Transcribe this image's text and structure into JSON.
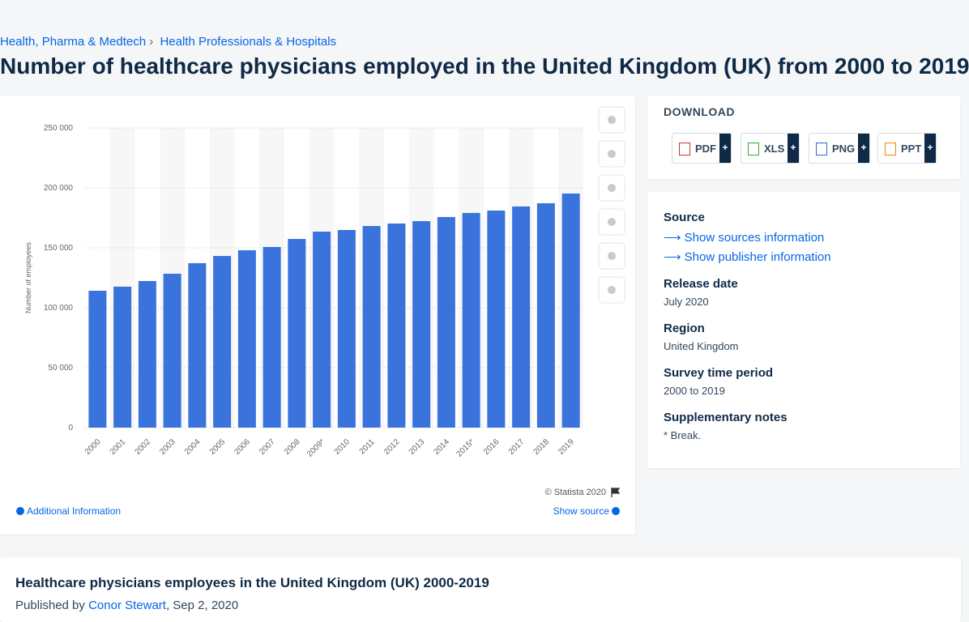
{
  "breadcrumbs": [
    "Health, Pharma & Medtech",
    "Health Professionals & Hospitals"
  ],
  "page_title": "Number of healthcare physicians employed in the United Kingdom (UK) from 2000 to 2019",
  "chart_data": {
    "type": "bar",
    "y_label": "Number of employees",
    "categories": [
      "2000",
      "2001",
      "2002",
      "2003",
      "2004",
      "2005",
      "2006",
      "2007",
      "2008",
      "2009*",
      "2010",
      "2011",
      "2012",
      "2013",
      "2014",
      "2015*",
      "2016",
      "2017",
      "2018",
      "2019"
    ],
    "values": [
      114200,
      117600,
      122300,
      128400,
      137200,
      143200,
      148000,
      150700,
      157400,
      163500,
      164900,
      168200,
      170300,
      172300,
      175700,
      179100,
      181100,
      184500,
      187200,
      195300
    ],
    "color": "#3a73dc",
    "ylim": [
      0,
      250000
    ],
    "yticks": [
      0,
      {
        "value": 50000,
        "label": "50 000"
      },
      {
        "value": 100000,
        "label": "100 000"
      },
      {
        "value": 150000,
        "label": "150 000"
      },
      {
        "value": 200000,
        "label": "200 000"
      },
      {
        "value": 250000,
        "label": "250 000"
      }
    ],
    "grid": true,
    "copyright": "© Statista 2020"
  },
  "chart_links": {
    "additional": "Additional Information",
    "show_source": "Show source"
  },
  "download": {
    "heading": "DOWNLOAD",
    "formats": [
      "PDF",
      "XLS",
      "PNG",
      "PPT"
    ],
    "plus": "+"
  },
  "details": {
    "source_heading": "Source",
    "sources_link": "Show sources information",
    "publisher_link": "Show publisher information",
    "release_heading": "Release date",
    "release": "July 2020",
    "region_heading": "Region",
    "region": "United Kingdom",
    "period_heading": "Survey time period",
    "period": "2000 to 2019",
    "notes_heading": "Supplementary notes",
    "notes": "* Break."
  },
  "publication": {
    "title": "Healthcare physicians employees in the United Kingdom (UK) 2000-2019",
    "published_by": "Published by",
    "author": "Conor Stewart",
    "date": ", Sep 2, 2020"
  }
}
